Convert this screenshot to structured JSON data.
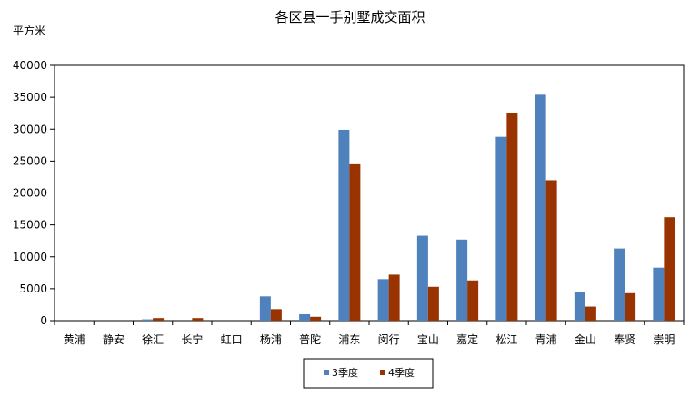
{
  "chart_data": {
    "type": "bar",
    "title": "各区县一手别墅成交面积",
    "ylabel": "平方米",
    "xlabel": "",
    "ylim": [
      0,
      40000
    ],
    "yticks": [
      0,
      5000,
      10000,
      15000,
      20000,
      25000,
      30000,
      35000,
      40000
    ],
    "grid": false,
    "legend_position": "bottom",
    "categories": [
      "黄浦",
      "静安",
      "徐汇",
      "长宁",
      "虹口",
      "杨浦",
      "普陀",
      "浦东",
      "闵行",
      "宝山",
      "嘉定",
      "松江",
      "青浦",
      "金山",
      "奉贤",
      "崇明"
    ],
    "series": [
      {
        "name": "3季度",
        "color": "#4f81bd",
        "values": [
          0,
          0,
          200,
          0,
          0,
          3800,
          1000,
          29900,
          6500,
          13300,
          12700,
          28800,
          35400,
          4500,
          11300,
          8300
        ]
      },
      {
        "name": "4季度",
        "color": "#993300",
        "values": [
          0,
          0,
          400,
          400,
          0,
          1800,
          600,
          24500,
          7200,
          5300,
          6300,
          32600,
          22000,
          2200,
          4300,
          16200
        ]
      }
    ]
  }
}
